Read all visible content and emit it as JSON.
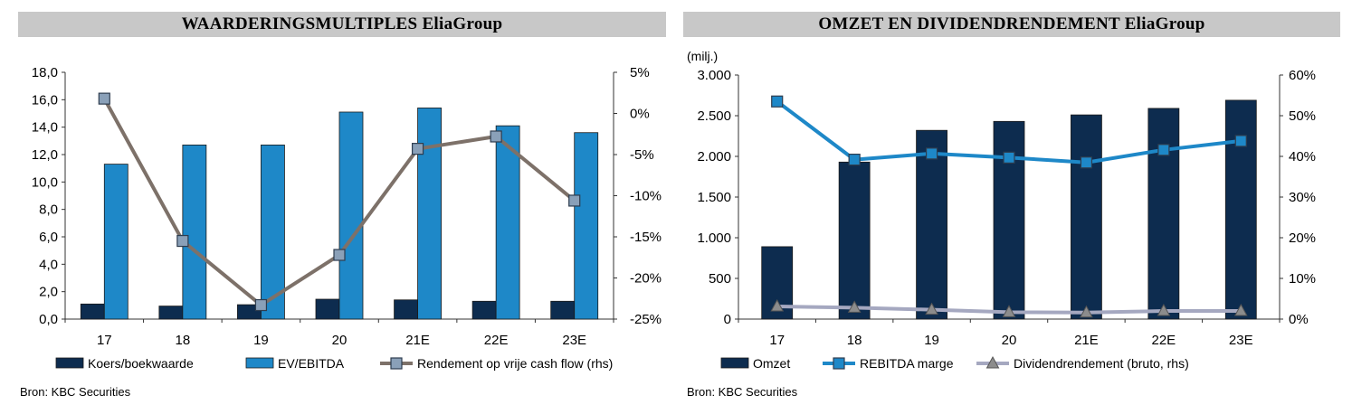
{
  "charts": {
    "left": {
      "header": "WAARDERINGSMULTIPLES EliaGroup",
      "source": "Bron: KBC Securities",
      "chart_data": {
        "type": "bar",
        "categories": [
          "17",
          "18",
          "19",
          "20",
          "21E",
          "22E",
          "23E"
        ],
        "ylim": [
          0,
          18
        ],
        "y_ticks": [
          "0,0",
          "2,0",
          "4,0",
          "6,0",
          "8,0",
          "10,0",
          "12,0",
          "14,0",
          "16,0",
          "18,0"
        ],
        "y2lim": [
          -25,
          5
        ],
        "y2_ticks": [
          "-25%",
          "-20%",
          "-15%",
          "-10%",
          "-5%",
          "0%",
          "5%"
        ],
        "series": [
          {
            "name": "Koers/boekwaarde",
            "type": "bar",
            "axis": "left",
            "color": "#0d2c4f",
            "values": [
              1.1,
              0.95,
              1.05,
              1.45,
              1.4,
              1.3,
              1.3
            ]
          },
          {
            "name": "EV/EBITDA",
            "type": "bar",
            "axis": "left",
            "color": "#1e88c8",
            "values": [
              11.3,
              12.7,
              12.7,
              15.1,
              15.4,
              14.1,
              13.6
            ]
          },
          {
            "name": "Rendement op vrije cash flow (rhs)",
            "type": "line",
            "marker": "square",
            "axis": "right",
            "color": "#7d7169",
            "marker_color": "#8aa0b8",
            "values": [
              1.8,
              -15.5,
              -23.3,
              -17.2,
              -4.3,
              -2.8,
              -10.6
            ]
          }
        ]
      }
    },
    "right": {
      "header": "OMZET EN DIVIDENDRENDEMENT EliaGroup",
      "unit_label": "(milj.)",
      "source": "Bron: KBC Securities",
      "chart_data": {
        "type": "bar",
        "categories": [
          "17",
          "18",
          "19",
          "20",
          "21E",
          "22E",
          "23E"
        ],
        "ylim": [
          0,
          3000
        ],
        "y_ticks": [
          "0",
          "500",
          "1.000",
          "1.500",
          "2.000",
          "2.500",
          "3.000"
        ],
        "y2lim": [
          0,
          60
        ],
        "y2_ticks": [
          "0%",
          "10%",
          "20%",
          "30%",
          "40%",
          "50%",
          "60%"
        ],
        "series": [
          {
            "name": "Omzet",
            "type": "bar",
            "axis": "left",
            "color": "#0d2c4f",
            "values": [
              890,
              1930,
              2320,
              2430,
              2510,
              2590,
              2690
            ]
          },
          {
            "name": "REBITDA marge",
            "type": "line",
            "marker": "square",
            "axis": "right",
            "color": "#1e88c8",
            "marker_color": "#1e88c8",
            "values": [
              53.5,
              39.2,
              40.7,
              39.7,
              38.5,
              41.6,
              43.8
            ]
          },
          {
            "name": "Dividendrendement (bruto, rhs)",
            "type": "line",
            "marker": "triangle",
            "axis": "right",
            "color": "#a5a8c0",
            "marker_color": "#8c8c8c",
            "values": [
              3.1,
              2.8,
              2.3,
              1.7,
              1.6,
              2.0,
              2.0
            ]
          }
        ]
      }
    }
  }
}
